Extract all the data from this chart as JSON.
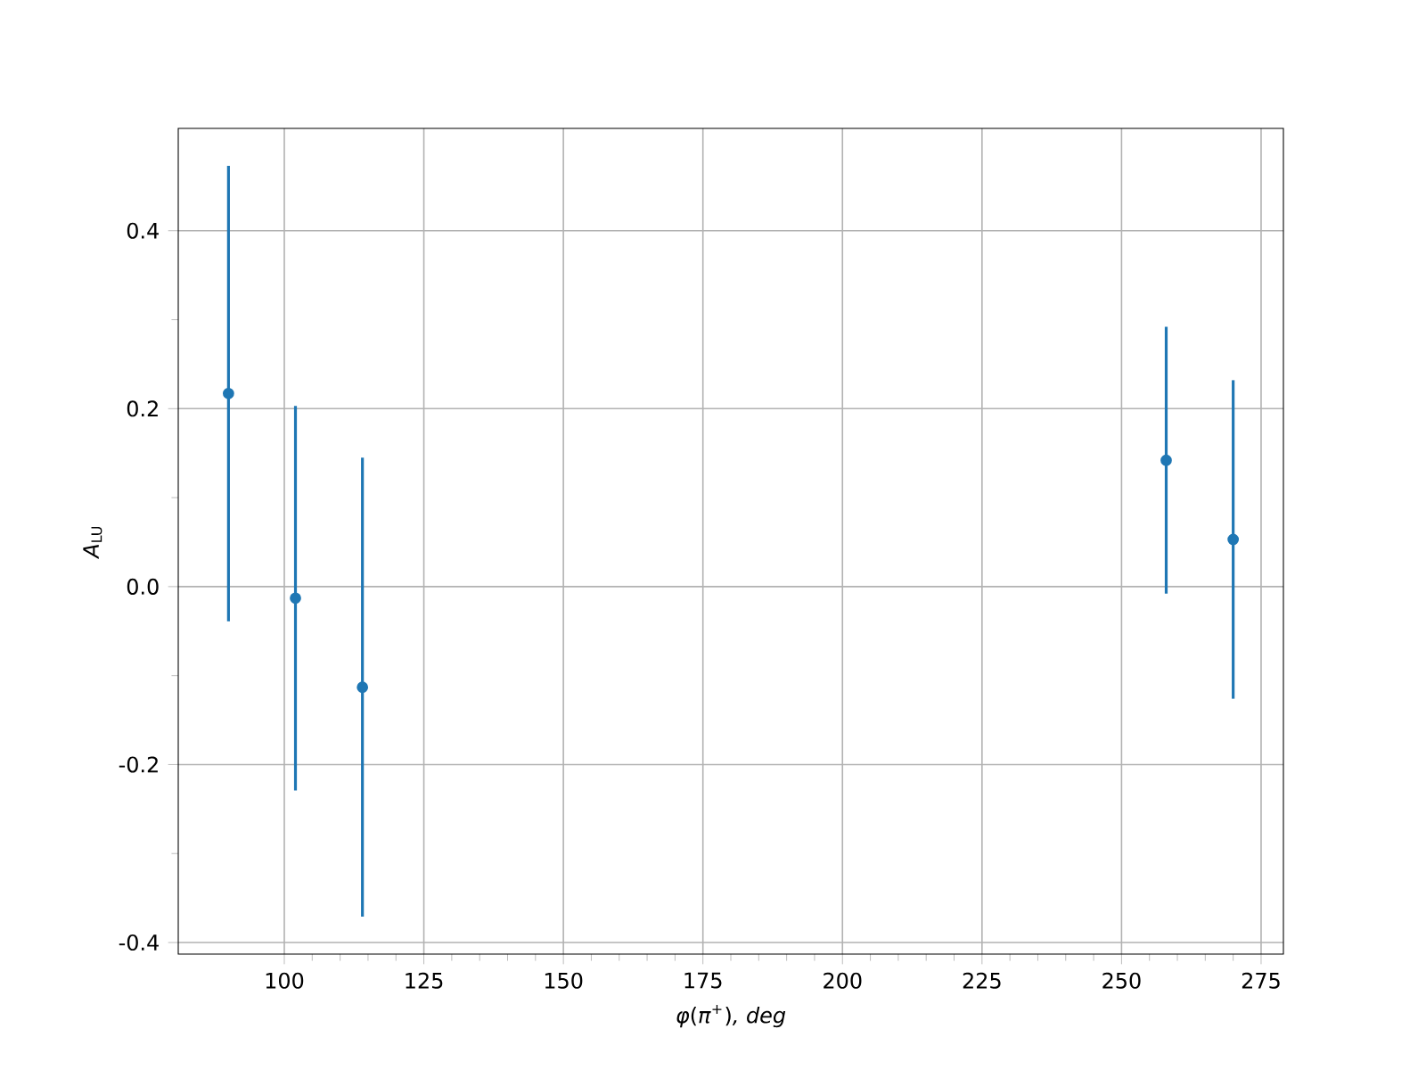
{
  "chart_data": {
    "type": "scatter",
    "xlabel": "*φ*(*π*$^{+}$)*, deg*",
    "ylabel": "*A*$_{LU}$",
    "x": [
      90,
      102,
      114,
      258,
      270
    ],
    "values": [
      0.217,
      -0.013,
      -0.113,
      0.142,
      0.053
    ],
    "errors": [
      0.256,
      0.216,
      0.258,
      0.15,
      0.179
    ],
    "color": "#1f77b4",
    "marker": "circle",
    "grid": true,
    "xlim": [
      81,
      279
    ],
    "ylim": [
      -0.413,
      0.515
    ],
    "xticks": [
      100,
      125,
      150,
      175,
      200,
      225,
      250,
      275
    ],
    "yticks": [
      -0.4,
      -0.2,
      {
        "value": 0,
        "label": "0.0"
      },
      0.2,
      0.4
    ]
  }
}
